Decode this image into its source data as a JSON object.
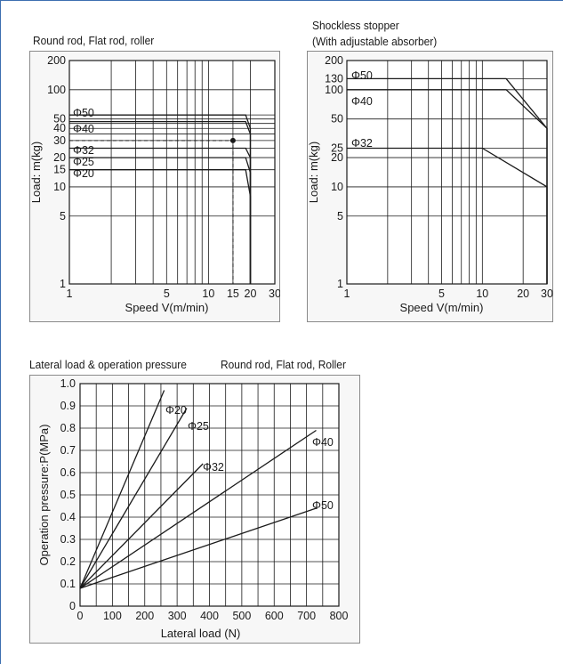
{
  "colors": {
    "frame_border": "#3d6fb0",
    "panel_bg": "#f7f7f7",
    "line": "#1a1a1a"
  },
  "chart_data": [
    {
      "type": "line",
      "title": "Round rod, Flat rod, roller",
      "xlabel": "Speed  V(m/min)",
      "ylabel": "Load:  m(kg)",
      "xscale": "log",
      "yscale": "log",
      "xlim": [
        1,
        30
      ],
      "ylim": [
        1,
        200
      ],
      "xticks": [
        "1",
        "5",
        "10",
        "15",
        "20",
        "30"
      ],
      "yticks": [
        "200",
        "100",
        "50",
        "40",
        "30",
        "20",
        "15",
        "10",
        "5",
        "1"
      ],
      "grid": true,
      "series": [
        {
          "name": "Φ50",
          "x": [
            1,
            18.5,
            20,
            20
          ],
          "y": [
            55,
            55,
            40,
            1
          ]
        },
        {
          "name": "Φ40",
          "x": [
            1,
            18.5,
            20,
            20
          ],
          "y": [
            47,
            47,
            35,
            1
          ]
        },
        {
          "name": "Φ32",
          "x": [
            1,
            18.5,
            20,
            20
          ],
          "y": [
            25,
            25,
            20,
            1
          ]
        },
        {
          "name": "Φ25",
          "x": [
            1,
            18.5,
            20,
            20
          ],
          "y": [
            20,
            20,
            14,
            1
          ]
        },
        {
          "name": "Φ20",
          "x": [
            1,
            18.5,
            20,
            20
          ],
          "y": [
            15,
            15,
            8,
            1
          ]
        }
      ],
      "annotation": {
        "x": 15,
        "y": 30
      }
    },
    {
      "type": "line",
      "title": "Shockless stopper",
      "subtitle": "(With adjustable absorber)",
      "xlabel": "Speed  V(m/min)",
      "ylabel": "Load:  m(kg)",
      "xscale": "log",
      "yscale": "log",
      "xlim": [
        1,
        30
      ],
      "ylim": [
        1,
        200
      ],
      "xticks": [
        "1",
        "5",
        "10",
        "20",
        "30"
      ],
      "yticks": [
        "200",
        "130",
        "100",
        "50",
        "25",
        "20",
        "10",
        "5",
        "1"
      ],
      "grid": true,
      "series": [
        {
          "name": "Φ50",
          "x": [
            1,
            15,
            30,
            30
          ],
          "y": [
            130,
            130,
            40,
            1
          ]
        },
        {
          "name": "Φ40",
          "x": [
            1,
            15,
            30,
            30
          ],
          "y": [
            100,
            100,
            40,
            1
          ]
        },
        {
          "name": "Φ32",
          "x": [
            1,
            10,
            30,
            30
          ],
          "y": [
            25,
            25,
            10,
            1
          ]
        }
      ]
    },
    {
      "type": "line",
      "title": "Lateral load & operation pressure",
      "subtitle": "Round rod, Flat rod, Roller",
      "xlabel": "Lateral load    (N)",
      "ylabel": "Operation pressure:P(MPa)",
      "xlim": [
        0,
        800
      ],
      "ylim": [
        0,
        1.0
      ],
      "xticks": [
        "0",
        "100",
        "200",
        "300",
        "400",
        "500",
        "600",
        "700",
        "800"
      ],
      "yticks": [
        "1.0",
        "0.9",
        "0.8",
        "0.7",
        "0.6",
        "0.5",
        "0.4",
        "0.3",
        "0.2",
        "0.1",
        "0"
      ],
      "grid": true,
      "series": [
        {
          "name": "Φ20",
          "x": [
            0,
            260
          ],
          "y": [
            0.08,
            0.97
          ]
        },
        {
          "name": "Φ25",
          "x": [
            0,
            330
          ],
          "y": [
            0.08,
            0.89
          ]
        },
        {
          "name": "Φ32",
          "x": [
            0,
            380
          ],
          "y": [
            0.08,
            0.64
          ]
        },
        {
          "name": "Φ40",
          "x": [
            0,
            730
          ],
          "y": [
            0.08,
            0.79
          ]
        },
        {
          "name": "Φ50",
          "x": [
            0,
            730
          ],
          "y": [
            0.08,
            0.44
          ]
        }
      ]
    }
  ]
}
